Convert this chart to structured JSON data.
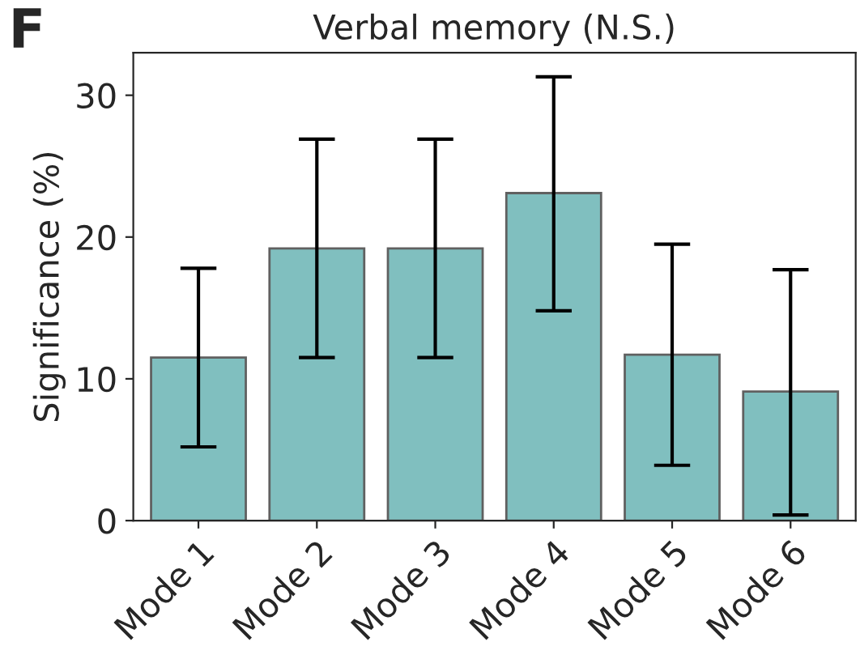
{
  "chart_data": {
    "type": "bar",
    "title": "Verbal memory (N.S.)",
    "ylabel": "Significance (%)",
    "annotations": [
      "F"
    ],
    "categories": [
      "Mode 1",
      "Mode 2",
      "Mode 3",
      "Mode 4",
      "Mode 5",
      "Mode 6"
    ],
    "values": [
      11.5,
      19.2,
      19.2,
      23.1,
      11.7,
      9.1
    ],
    "errors": [
      [
        5.2,
        17.8
      ],
      [
        11.5,
        26.9
      ],
      [
        11.5,
        26.9
      ],
      [
        14.8,
        31.3
      ],
      [
        3.9,
        19.5
      ],
      [
        0.4,
        17.7
      ]
    ],
    "color": "#80bfbf",
    "ylim": [
      0,
      33
    ],
    "yticks": [
      0,
      10,
      20,
      30
    ]
  }
}
